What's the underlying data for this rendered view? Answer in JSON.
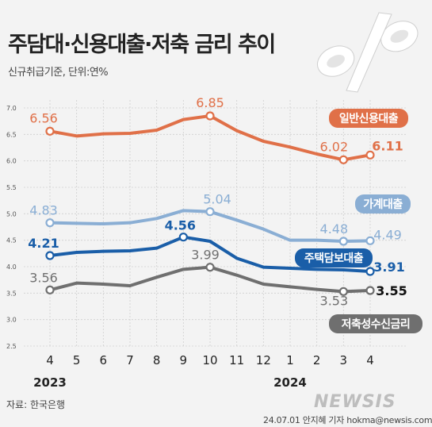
{
  "header": {
    "title": "주담대·신용대출·저축 금리 추이",
    "subtitle": "신규취급기준, 단위:연%"
  },
  "footer": {
    "source": "자료: 한국은행",
    "credit": "24.07.01 안지혜 기자 hokma@newsis.com",
    "logo": "NEWSIS"
  },
  "colors": {
    "general_credit": "#e07048",
    "household": "#8aaed4",
    "mortgage": "#1a5ea8",
    "savings": "#6f6f6f"
  },
  "chart_data": {
    "type": "line",
    "x": [
      "4",
      "5",
      "6",
      "7",
      "8",
      "9",
      "10",
      "11",
      "12",
      "1",
      "2",
      "3",
      "4"
    ],
    "year_labels": [
      {
        "index": 0,
        "label": "2023"
      },
      {
        "index": 9,
        "label": "2024"
      }
    ],
    "yticks": [
      "7.0",
      "6.5",
      "6.0",
      "5.5",
      "5.0",
      "4.5",
      "4.0",
      "3.5",
      "3.0",
      "2.5"
    ],
    "ylim": [
      2.5,
      7.0
    ],
    "grid": true,
    "series": [
      {
        "name": "일반신용대출",
        "color": "#e07048",
        "values": [
          6.56,
          6.47,
          6.51,
          6.52,
          6.58,
          6.78,
          6.85,
          6.57,
          6.37,
          6.26,
          6.13,
          6.02,
          6.11
        ],
        "labels": [
          {
            "index": 0,
            "text": "6.56"
          },
          {
            "index": 6,
            "text": "6.85"
          },
          {
            "index": 11,
            "text": "6.02"
          },
          {
            "index": 12,
            "text": "6.11"
          }
        ]
      },
      {
        "name": "가계대출",
        "color": "#8aaed4",
        "values": [
          4.83,
          4.82,
          4.81,
          4.83,
          4.91,
          5.06,
          5.04,
          4.88,
          4.71,
          4.5,
          4.5,
          4.48,
          4.49
        ],
        "labels": [
          {
            "index": 0,
            "text": "4.83"
          },
          {
            "index": 6,
            "text": "5.04"
          },
          {
            "index": 11,
            "text": "4.48"
          },
          {
            "index": 12,
            "text": "4.49"
          }
        ]
      },
      {
        "name": "주택담보대출",
        "color": "#1a5ea8",
        "values": [
          4.21,
          4.27,
          4.29,
          4.3,
          4.35,
          4.56,
          4.48,
          4.16,
          3.99,
          3.97,
          3.95,
          3.94,
          3.91
        ],
        "labels": [
          {
            "index": 0,
            "text": "4.21"
          },
          {
            "index": 5,
            "text": "4.56"
          },
          {
            "index": 12,
            "text": "3.91"
          }
        ]
      },
      {
        "name": "저축성수신금리",
        "color": "#6f6f6f",
        "values": [
          3.56,
          3.69,
          3.67,
          3.64,
          3.8,
          3.95,
          3.99,
          3.84,
          3.67,
          3.62,
          3.57,
          3.53,
          3.55
        ],
        "labels": [
          {
            "index": 0,
            "text": "3.56"
          },
          {
            "index": 6,
            "text": "3.99"
          },
          {
            "index": 11,
            "text": "3.53"
          },
          {
            "index": 12,
            "text": "3.55"
          }
        ]
      }
    ]
  }
}
